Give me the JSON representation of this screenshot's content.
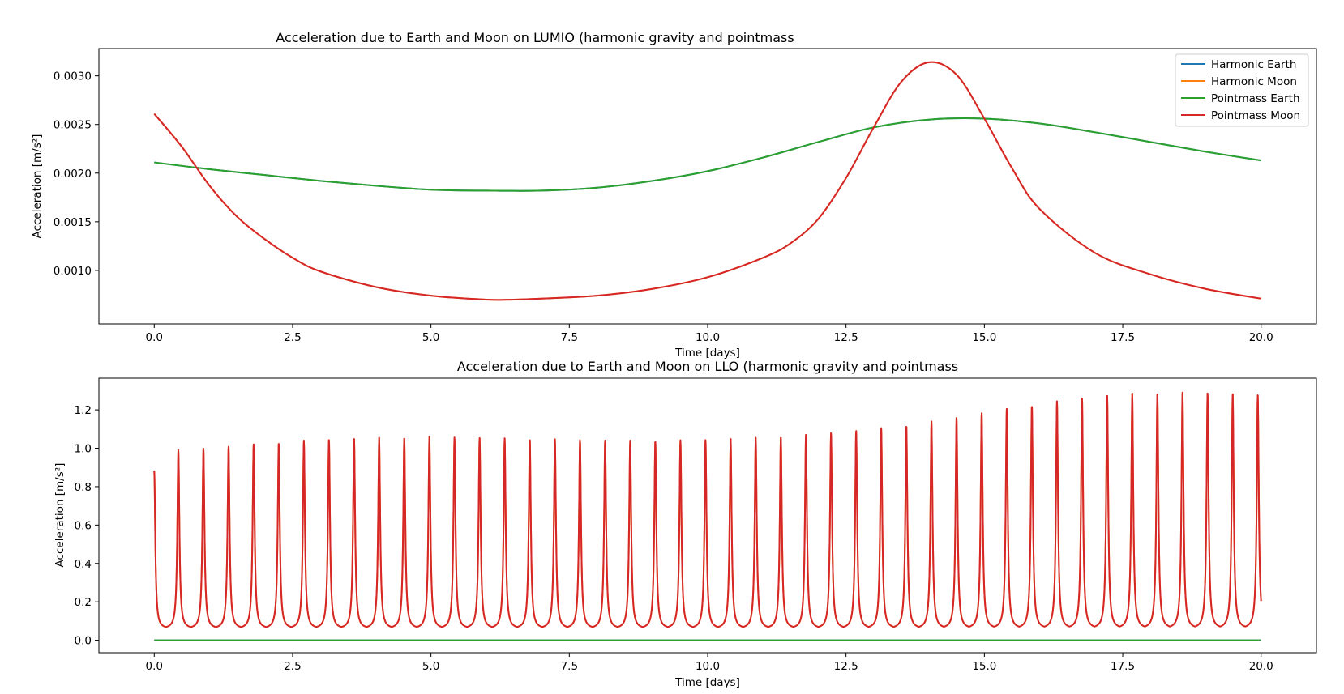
{
  "chart_data": [
    {
      "type": "line",
      "title": "Acceleration due to Earth and Moon on LUMIO (harmonic gravity and pointmass",
      "xlabel": "Time [days]",
      "ylabel": "Acceleration [m/s²]",
      "xlim": [
        -1.0,
        21.0
      ],
      "ylim": [
        0.00045,
        0.00328
      ],
      "xticks": [
        0.0,
        2.5,
        5.0,
        7.5,
        10.0,
        12.5,
        15.0,
        17.5,
        20.0
      ],
      "xtick_labels": [
        "0.0",
        "2.5",
        "5.0",
        "7.5",
        "10.0",
        "12.5",
        "15.0",
        "17.5",
        "20.0"
      ],
      "yticks": [
        0.001,
        0.0015,
        0.002,
        0.0025,
        0.003
      ],
      "ytick_labels": [
        "0.0010",
        "0.0015",
        "0.0020",
        "0.0025",
        "0.0030"
      ],
      "grid": false,
      "legend": {
        "placement": "upper right",
        "entries": [
          "Harmonic Earth",
          "Harmonic Moon",
          "Pointmass Earth",
          "Pointmass Moon"
        ]
      },
      "series": [
        {
          "name": "Harmonic Earth",
          "color": "#1f77b4",
          "x": [
            0,
            1,
            2,
            3,
            4,
            5,
            6,
            7,
            8,
            9,
            10,
            11,
            12,
            13,
            14,
            15,
            16,
            17,
            18,
            19,
            20
          ],
          "y": [
            0.00211,
            0.00204,
            0.00198,
            0.00192,
            0.00187,
            0.00183,
            0.00182,
            0.00182,
            0.00185,
            0.00192,
            0.00202,
            0.00216,
            0.00232,
            0.00247,
            0.00255,
            0.00256,
            0.00251,
            0.00242,
            0.00232,
            0.00222,
            0.00213
          ]
        },
        {
          "name": "Harmonic Moon",
          "color": "#ff7f0e",
          "x": [
            0,
            0.5,
            1,
            1.5,
            2,
            2.5,
            3,
            4,
            5,
            6,
            6.5,
            7,
            8,
            9,
            10,
            11,
            11.5,
            12,
            12.5,
            13,
            13.5,
            14,
            14.5,
            15,
            15.5,
            16,
            17,
            18,
            19,
            20
          ],
          "y": [
            0.00261,
            0.00227,
            0.00187,
            0.00155,
            0.00132,
            0.00113,
            0.00099,
            0.00083,
            0.00074,
            0.0007,
            0.0007,
            0.00071,
            0.00074,
            0.00081,
            0.00093,
            0.00113,
            0.00128,
            0.00153,
            0.00195,
            0.00247,
            0.00294,
            0.00314,
            0.00301,
            0.00256,
            0.00205,
            0.00163,
            0.00118,
            0.00096,
            0.00081,
            0.00071
          ]
        },
        {
          "name": "Pointmass Earth",
          "color": "#2ca02c",
          "x": [
            0,
            1,
            2,
            3,
            4,
            5,
            6,
            7,
            8,
            9,
            10,
            11,
            12,
            13,
            14,
            15,
            16,
            17,
            18,
            19,
            20
          ],
          "y": [
            0.00211,
            0.00204,
            0.00198,
            0.00192,
            0.00187,
            0.00183,
            0.00182,
            0.00182,
            0.00185,
            0.00192,
            0.00202,
            0.00216,
            0.00232,
            0.00247,
            0.00255,
            0.00256,
            0.00251,
            0.00242,
            0.00232,
            0.00222,
            0.00213
          ]
        },
        {
          "name": "Pointmass Moon",
          "color": "#d62728",
          "x": [
            0,
            0.5,
            1,
            1.5,
            2,
            2.5,
            3,
            4,
            5,
            6,
            6.5,
            7,
            8,
            9,
            10,
            11,
            11.5,
            12,
            12.5,
            13,
            13.5,
            14,
            14.5,
            15,
            15.5,
            16,
            17,
            18,
            19,
            20
          ],
          "y": [
            0.00261,
            0.00227,
            0.00187,
            0.00155,
            0.00132,
            0.00113,
            0.00099,
            0.00083,
            0.00074,
            0.0007,
            0.0007,
            0.00071,
            0.00074,
            0.00081,
            0.00093,
            0.00113,
            0.00128,
            0.00153,
            0.00195,
            0.00247,
            0.00294,
            0.00314,
            0.00301,
            0.00256,
            0.00205,
            0.00163,
            0.00118,
            0.00096,
            0.00081,
            0.00071
          ]
        }
      ]
    },
    {
      "type": "line",
      "title": "Acceleration due to Earth and Moon on LLO (harmonic gravity and pointmass",
      "xlabel": "Time [days]",
      "ylabel": "Acceleration [m/s²]",
      "xlim": [
        -1.0,
        21.0
      ],
      "ylim": [
        -0.065,
        1.365
      ],
      "xticks": [
        0.0,
        2.5,
        5.0,
        7.5,
        10.0,
        12.5,
        15.0,
        17.5,
        20.0
      ],
      "xtick_labels": [
        "0.0",
        "2.5",
        "5.0",
        "7.5",
        "10.0",
        "12.5",
        "15.0",
        "17.5",
        "20.0"
      ],
      "yticks": [
        0.0,
        0.2,
        0.4,
        0.6,
        0.8,
        1.0,
        1.2
      ],
      "ytick_labels": [
        "0.0",
        "0.2",
        "0.4",
        "0.6",
        "0.8",
        "1.0",
        "1.2"
      ],
      "grid": false,
      "legend": null,
      "periodic_signal": {
        "period_days": 0.4536,
        "trough_value": 0.06,
        "start_value": 0.88,
        "peak_times": [
          0.436,
          0.889,
          1.343,
          1.796,
          2.25,
          2.704,
          3.157,
          3.611,
          4.064,
          4.518,
          4.972,
          5.425,
          5.879,
          6.332,
          6.786,
          7.24,
          7.693,
          8.147,
          8.6,
          9.054,
          9.508,
          9.961,
          10.415,
          10.868,
          11.322,
          11.776,
          12.229,
          12.683,
          13.136,
          13.59,
          14.044,
          14.497,
          14.951,
          15.404,
          15.858,
          16.312,
          16.765,
          17.219,
          17.672,
          18.126,
          18.58,
          19.033,
          19.487,
          19.94
        ],
        "peak_values": [
          0.99,
          1.0,
          1.01,
          1.02,
          1.03,
          1.04,
          1.045,
          1.05,
          1.055,
          1.058,
          1.06,
          1.058,
          1.055,
          1.052,
          1.05,
          1.047,
          1.044,
          1.042,
          1.04,
          1.04,
          1.042,
          1.045,
          1.05,
          1.055,
          1.062,
          1.07,
          1.08,
          1.092,
          1.105,
          1.12,
          1.14,
          1.16,
          1.185,
          1.205,
          1.225,
          1.245,
          1.262,
          1.275,
          1.285,
          1.29,
          1.29,
          1.288,
          1.284,
          1.276
        ]
      },
      "series": [
        {
          "name": "Harmonic Earth",
          "color": "#1f77b4",
          "x": [
            0,
            20
          ],
          "y": [
            0.0,
            0.0
          ]
        },
        {
          "name": "Harmonic Moon",
          "color": "#ff7f0e",
          "x": [],
          "y": []
        },
        {
          "name": "Pointmass Earth",
          "color": "#2ca02c",
          "x": [
            0,
            20
          ],
          "y": [
            0.0,
            0.0
          ]
        },
        {
          "name": "Pointmass Moon",
          "color": "#d62728",
          "x": [],
          "y": []
        }
      ]
    }
  ]
}
